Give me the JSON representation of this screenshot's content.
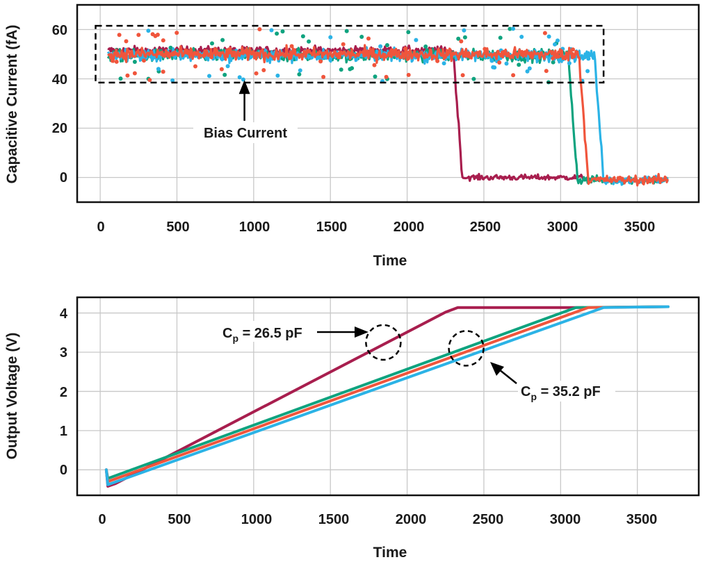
{
  "colors": {
    "series_26_5pF": "#a81e4e",
    "series_teal": "#0fa37f",
    "series_blue": "#2bb3e6",
    "series_orange": "#f0553c",
    "grid": "#c8c8c8",
    "axis": "#111111"
  },
  "chart_data": [
    {
      "type": "scatter",
      "title": "",
      "xlabel": "Time",
      "ylabel": "Capacitive Current (fA)",
      "xlim": [
        -150,
        3900
      ],
      "ylim": [
        -10,
        70
      ],
      "grid": true,
      "x_ticks": [
        "0",
        "500",
        "1000",
        "1500",
        "2000",
        "2500",
        "3000",
        "3500"
      ],
      "y_ticks": [
        "0",
        "20",
        "40",
        "60"
      ],
      "series": [
        {
          "name": "26.5 pF",
          "color_key": "series_26_5pF",
          "x_start": 50,
          "x_end": 3150,
          "level_before": 51.5,
          "level_after": 0,
          "transition_x": 2330,
          "noise": 2.0
        },
        {
          "name": "teal",
          "color_key": "series_teal",
          "x_start": 50,
          "x_end": 3700,
          "level_before": 49.5,
          "level_after": -1,
          "transition_x": 3080,
          "noise": 3.0
        },
        {
          "name": "blue",
          "color_key": "series_blue",
          "x_start": 50,
          "x_end": 3700,
          "level_before": 49.5,
          "level_after": -1,
          "transition_x": 3250,
          "noise": 3.0
        },
        {
          "name": "orange",
          "color_key": "series_orange",
          "x_start": 50,
          "x_end": 3700,
          "level_before": 50,
          "level_after": -1,
          "transition_x": 3150,
          "noise": 3.2
        }
      ],
      "bias_box": {
        "x_range": [
          -30,
          3280
        ],
        "y_range": [
          38.5,
          61.5
        ]
      },
      "annotation": {
        "text": "Bias Current",
        "arrow_x": 940,
        "arrow_y_from": 23,
        "arrow_y_to": 39.5
      }
    },
    {
      "type": "line",
      "title": "",
      "xlabel": "Time",
      "ylabel": "Output Voltage (V)",
      "xlim": [
        -150,
        3900
      ],
      "ylim": [
        -0.65,
        4.4
      ],
      "grid": true,
      "x_ticks": [
        "0",
        "500",
        "1000",
        "1500",
        "2000",
        "2500",
        "3000",
        "3500"
      ],
      "y_ticks": [
        "0",
        "1",
        "2",
        "3",
        "4"
      ],
      "series": [
        {
          "name": "26.5 pF",
          "color_key": "series_26_5pF",
          "x_end": 3150,
          "points": [
            [
              40,
              0.0
            ],
            [
              50,
              -0.42
            ],
            [
              100,
              -0.35
            ],
            [
              2250,
              4.02
            ],
            [
              2330,
              4.14
            ],
            [
              3150,
              4.14
            ]
          ]
        },
        {
          "name": "teal",
          "color_key": "series_teal",
          "x_end": 3700,
          "points": [
            [
              40,
              0.0
            ],
            [
              50,
              -0.22
            ],
            [
              3100,
              4.14
            ],
            [
              3700,
              4.16
            ]
          ]
        },
        {
          "name": "orange",
          "color_key": "series_orange",
          "x_end": 3700,
          "points": [
            [
              40,
              0.0
            ],
            [
              50,
              -0.3
            ],
            [
              3180,
              4.14
            ],
            [
              3700,
              4.16
            ]
          ]
        },
        {
          "name": "blue",
          "color_key": "series_blue",
          "x_end": 3700,
          "points": [
            [
              40,
              0.0
            ],
            [
              50,
              -0.38
            ],
            [
              3280,
              4.14
            ],
            [
              3700,
              4.16
            ]
          ]
        }
      ],
      "annotations": [
        {
          "text_main": "C",
          "text_sub": "p",
          "text_rest": " = 26.5 pF",
          "circle_center": [
            1845,
            3.25
          ]
        },
        {
          "text_main": "C",
          "text_sub": "p",
          "text_rest": " = 35.2 pF",
          "circle_center": [
            2385,
            3.1
          ]
        }
      ]
    }
  ]
}
